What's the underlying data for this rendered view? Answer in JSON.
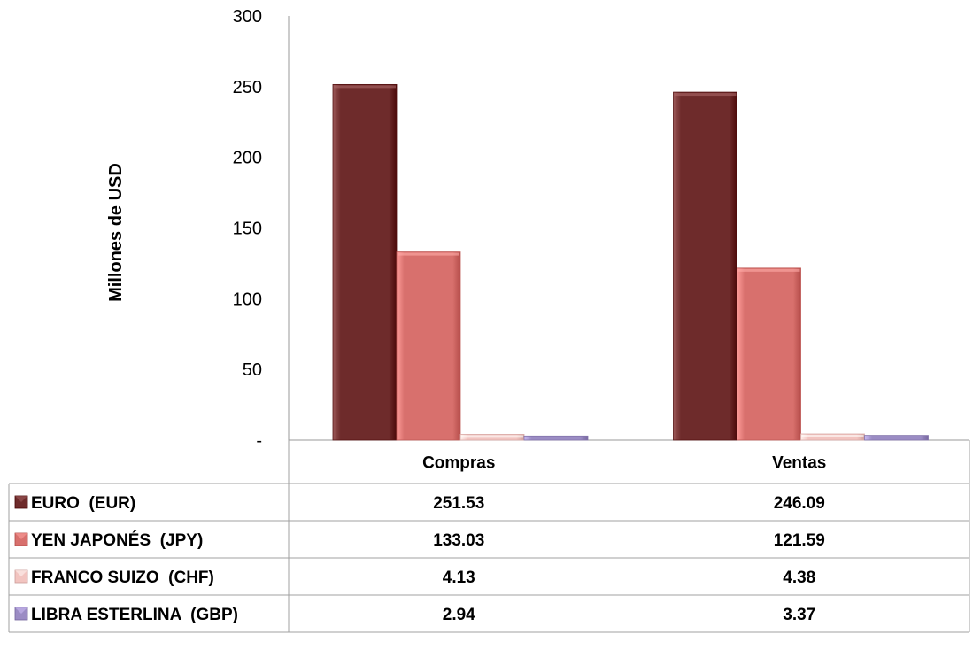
{
  "chart_data": {
    "type": "bar",
    "categories": [
      "Compras",
      "Ventas"
    ],
    "series": [
      {
        "name": "EURO  (EUR)",
        "values": [
          251.53,
          246.09
        ],
        "display": [
          "251.53",
          "246.09"
        ],
        "color": "#6E2B2B"
      },
      {
        "name": "YEN JAPONÉS  (JPY)",
        "values": [
          133.03,
          121.59
        ],
        "display": [
          "133.03",
          "121.59"
        ],
        "color": "#D8706D"
      },
      {
        "name": "FRANCO SUIZO  (CHF)",
        "values": [
          4.13,
          4.38
        ],
        "display": [
          "4.13",
          "4.38"
        ],
        "color": "#F2C4C0"
      },
      {
        "name": "LIBRA ESTERLINA  (GBP)",
        "values": [
          2.94,
          3.37
        ],
        "display": [
          "2.94",
          "3.37"
        ],
        "color": "#9B8CC4"
      }
    ],
    "ylabel": "Millones de USD",
    "ylim": [
      0,
      300
    ],
    "yticks": [
      0,
      50,
      100,
      150,
      200,
      250,
      300
    ],
    "ytick_labels": [
      "-",
      "50",
      "100",
      "150",
      "200",
      "250",
      "300"
    ],
    "grid": false,
    "legend": "data table below chart"
  }
}
